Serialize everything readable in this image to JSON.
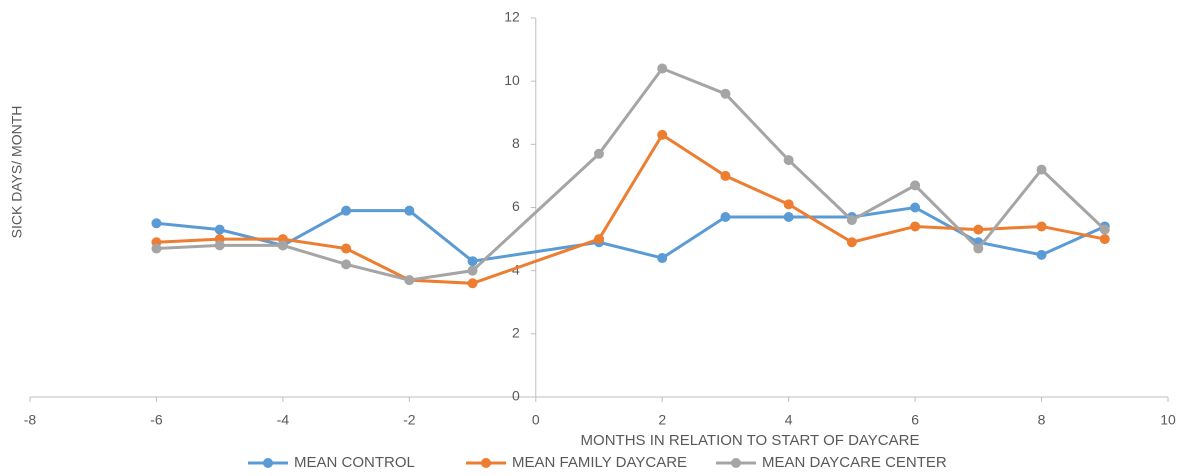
{
  "chart_data": {
    "type": "line",
    "x_label": "MONTHS IN RELATION TO START OF DAYCARE",
    "y_label": "SICK DAYS/ MONTH",
    "x": [
      -6,
      -5,
      -4,
      -3,
      -2,
      -1,
      1,
      2,
      3,
      4,
      5,
      6,
      7,
      8,
      9
    ],
    "series": [
      {
        "name": "MEAN CONTROL",
        "color": "#5b9bd5",
        "values": [
          5.5,
          5.3,
          4.8,
          5.9,
          5.9,
          4.3,
          4.9,
          4.4,
          5.7,
          5.7,
          5.7,
          6.0,
          4.9,
          4.5,
          5.4
        ]
      },
      {
        "name": "MEAN FAMILY DAYCARE",
        "color": "#ed7d31",
        "values": [
          4.9,
          5.0,
          5.0,
          4.7,
          3.7,
          3.6,
          5.0,
          8.3,
          7.0,
          6.1,
          4.9,
          5.4,
          5.3,
          5.4,
          5.0
        ]
      },
      {
        "name": "MEAN DAYCARE CENTER",
        "color": "#a5a5a5",
        "values": [
          4.7,
          4.8,
          4.8,
          4.2,
          3.7,
          4.0,
          7.7,
          10.4,
          9.6,
          7.5,
          5.6,
          6.7,
          4.7,
          7.2,
          5.3
        ]
      }
    ],
    "xlim": [
      -8,
      10
    ],
    "xticks": [
      -8,
      -6,
      -4,
      -2,
      0,
      2,
      4,
      6,
      8,
      10
    ],
    "ylim": [
      0,
      12
    ],
    "yticks": [
      0,
      2,
      4,
      6,
      8,
      10,
      12
    ],
    "grid": false,
    "legend": "bottom"
  }
}
